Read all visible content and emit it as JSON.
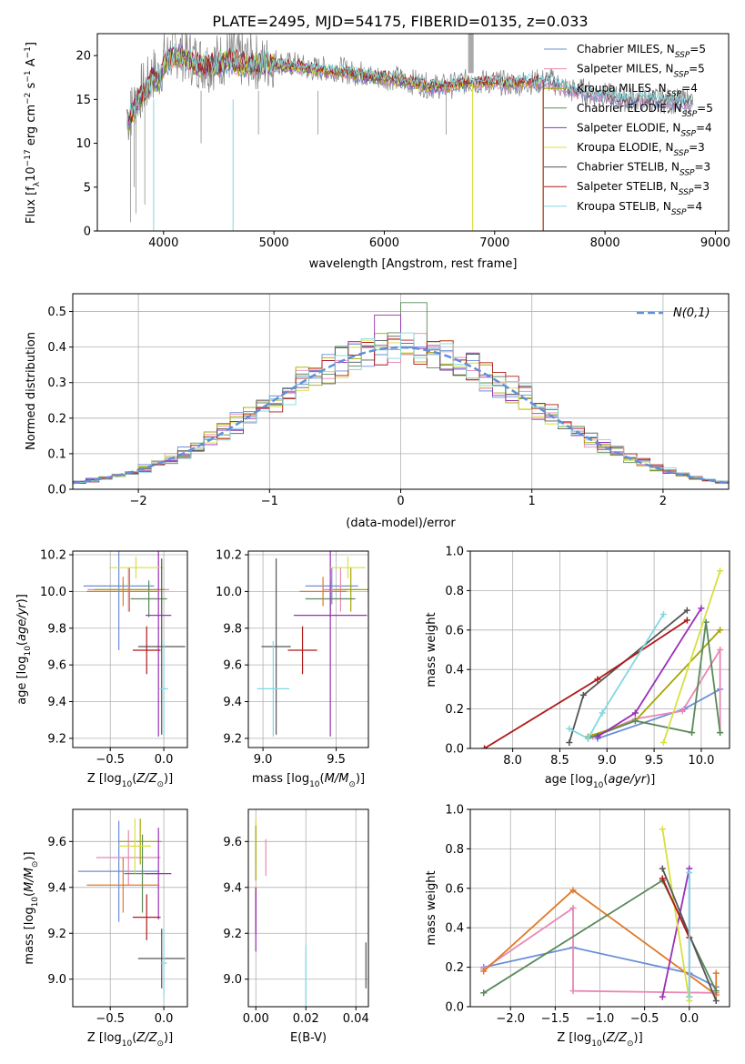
{
  "figure_title": "PLATE=2495, MJD=54175, FIBERID=0135, z=0.033",
  "colors": {
    "Chabrier MILES": "#6b8ed8",
    "Salpeter MILES": "#e888b4",
    "Kroupa MILES": "#a6a600",
    "Chabrier ELODIE": "#5a8a5a",
    "Salpeter ELODIE": "#9a30b8",
    "Kroupa ELODIE": "#d8e040",
    "Chabrier STELIB": "#555555",
    "Salpeter STELIB": "#b01818",
    "Kroupa STELIB": "#80d8e0",
    "orange": "#e07a28",
    "normal_curve": "#6090d8",
    "grid": "#b0b0b0"
  },
  "chart_data": [
    {
      "id": "spectrum",
      "type": "line",
      "xlabel": "wavelength [Angstrom, rest frame]",
      "ylabel": "Flux [f_λ 10^-17 erg cm^-2 s^-1 A^-1]",
      "xlim": [
        3400,
        9120
      ],
      "ylim": [
        0,
        22.5
      ],
      "xticks": [
        4000,
        5000,
        6000,
        7000,
        8000,
        9000
      ],
      "yticks": [
        0,
        5,
        10,
        15,
        20
      ],
      "grid": false,
      "legend": "top-right",
      "legend_entries": [
        {
          "name": "Chabrier MILES",
          "nssp": "5"
        },
        {
          "name": "Salpeter MILES",
          "nssp": "5"
        },
        {
          "name": "Kroupa MILES",
          "nssp": "4"
        },
        {
          "name": "Chabrier ELODIE",
          "nssp": "5"
        },
        {
          "name": "Salpeter ELODIE",
          "nssp": "4"
        },
        {
          "name": "Kroupa ELODIE",
          "nssp": "3"
        },
        {
          "name": "Chabrier STELIB",
          "nssp": "3"
        },
        {
          "name": "Salpeter STELIB",
          "nssp": "3"
        },
        {
          "name": "Kroupa STELIB",
          "nssp": "4"
        }
      ],
      "data_series": {
        "name": "data",
        "color": "#808080",
        "x": [
          3670,
          3700,
          3750,
          3800,
          3850,
          3900,
          3950,
          4000,
          4050,
          4100,
          4150,
          4200,
          4300,
          4400,
          4500,
          4600,
          4700,
          4800,
          4900,
          5000,
          5100,
          5200,
          5300,
          5400,
          5500,
          5600,
          5700,
          5800,
          5900,
          6000,
          6100,
          6200,
          6300,
          6400,
          6500,
          6600,
          6700,
          6800,
          6900,
          7000,
          7100,
          7200,
          7300,
          7400,
          7500,
          7600,
          7700,
          7800,
          7900,
          8000,
          8200,
          8400,
          8600,
          8800
        ],
        "y": [
          12.5,
          13.5,
          15.0,
          16.0,
          16.5,
          18.0,
          17.5,
          19.5,
          20.0,
          20.5,
          20.5,
          20.0,
          19.5,
          19.0,
          19.5,
          20.0,
          19.5,
          19.5,
          19.0,
          19.5,
          19.0,
          19.0,
          18.5,
          18.5,
          18.5,
          18.5,
          18.0,
          18.0,
          17.5,
          17.5,
          17.5,
          17.0,
          17.0,
          16.5,
          16.5,
          16.5,
          17.0,
          17.0,
          17.0,
          17.0,
          16.8,
          16.8,
          17.0,
          17.0,
          17.2,
          16.5,
          16.0,
          16.0,
          15.5,
          15.5,
          15.0,
          15.0,
          14.8,
          14.8
        ]
      },
      "model_curve": {
        "x": [
          3670,
          3700,
          3750,
          3800,
          3850,
          3900,
          3950,
          4000,
          4050,
          4100,
          4150,
          4200,
          4300,
          4400,
          4500,
          4600,
          4700,
          4800,
          4900,
          5000,
          5100,
          5200,
          5300,
          5400,
          5500,
          5600,
          5700,
          5800,
          5900,
          6000,
          6100,
          6200,
          6300,
          6400,
          6500,
          6600,
          6700,
          6800,
          6900,
          7000,
          7100,
          7200,
          7300,
          7400,
          7500,
          7600,
          7700,
          7800,
          7900,
          8000,
          8200,
          8400,
          8600,
          8800
        ],
        "y": [
          12.5,
          13.0,
          14.5,
          15.5,
          16.0,
          17.5,
          17.0,
          19.0,
          19.5,
          20.0,
          20.0,
          19.5,
          19.0,
          19.0,
          19.0,
          19.5,
          19.0,
          19.0,
          19.0,
          19.0,
          18.8,
          18.8,
          18.5,
          18.3,
          18.2,
          18.2,
          18.0,
          17.8,
          17.5,
          17.5,
          17.3,
          17.0,
          16.8,
          16.5,
          16.5,
          16.5,
          16.8,
          17.0,
          17.0,
          17.0,
          16.8,
          16.8,
          17.0,
          17.0,
          17.0,
          16.5,
          16.0,
          15.8,
          15.5,
          15.4,
          15.0,
          14.9,
          14.8,
          14.7
        ]
      },
      "model_ends": {
        "Chabrier MILES": 8840,
        "Salpeter MILES": 8840,
        "Kroupa MILES": 7440,
        "Chabrier ELODIE": 6800,
        "Salpeter ELODIE": 6800,
        "Kroupa ELODIE": 6800,
        "Chabrier STELIB": 8840,
        "Salpeter STELIB": 7440,
        "Kroupa STELIB": 8840
      }
    },
    {
      "id": "residuals",
      "type": "step",
      "xlabel": "(data-model)/error",
      "ylabel": "Normed distribution",
      "xlim": [
        -2.5,
        2.5
      ],
      "ylim": [
        0,
        0.55
      ],
      "xticks": [
        -2,
        -1,
        0,
        1,
        2
      ],
      "yticks": [
        0.0,
        0.1,
        0.2,
        0.3,
        0.4,
        0.5
      ],
      "grid": true,
      "legend": "top-right",
      "legend_label": "N(0,1)",
      "bin_width": 0.1
    },
    {
      "id": "age_vs_Z",
      "type": "errorbar",
      "xlabel": "Z [log10(Z/Z⊙)]",
      "ylabel": "age [log10(age/yr)]",
      "xlim": [
        -0.85,
        0.22
      ],
      "ylim": [
        9.15,
        10.22
      ],
      "xticks": [
        -0.5,
        0.0
      ],
      "yticks": [
        9.2,
        9.4,
        9.6,
        9.8,
        10.0,
        10.2
      ],
      "grid": true,
      "points": [
        {
          "model": "Chabrier MILES",
          "x": -0.42,
          "xerr": 0.33,
          "y": 10.03,
          "yerr": 0.35
        },
        {
          "model": "Salpeter MILES",
          "x": -0.33,
          "xerr": 0.38,
          "y": 10.01,
          "yerr": 0.12
        },
        {
          "model": "Kroupa MILES",
          "x": -0.32,
          "xerr": 0.33,
          "y": 10.01,
          "yerr": 0.12
        },
        {
          "model": "Chabrier ELODIE",
          "x": -0.14,
          "xerr": 0.17,
          "y": 9.96,
          "yerr": 0.1
        },
        {
          "model": "Salpeter ELODIE",
          "x": -0.05,
          "xerr": 0.12,
          "y": 9.87,
          "yerr": 0.66
        },
        {
          "model": "Kroupa ELODIE",
          "x": -0.26,
          "xerr": 0.25,
          "y": 10.13,
          "yerr": 0.06
        },
        {
          "model": "Chabrier STELIB",
          "x": -0.02,
          "xerr": 0.22,
          "y": 9.7,
          "yerr": 0.48
        },
        {
          "model": "Salpeter STELIB",
          "x": -0.16,
          "xerr": 0.13,
          "y": 9.68,
          "yerr": 0.13
        },
        {
          "model": "Kroupa STELIB",
          "x": 0.0,
          "xerr": 0.04,
          "y": 9.47,
          "yerr": 0.26
        },
        {
          "model": "orange",
          "x": -0.38,
          "xerr": 0.34,
          "y": 10.0,
          "yerr": 0.08
        }
      ]
    },
    {
      "id": "age_vs_mass",
      "type": "errorbar",
      "xlabel": "mass [log10(M/M⊙)]",
      "ylabel": "",
      "xlim": [
        8.9,
        9.72
      ],
      "ylim": [
        9.15,
        10.22
      ],
      "xticks": [
        9.0,
        9.5
      ],
      "yticks": [
        9.2,
        9.4,
        9.6,
        9.8,
        10.0,
        10.2
      ],
      "grid": true,
      "points": [
        {
          "model": "Chabrier MILES",
          "x": 9.47,
          "xerr": 0.18,
          "y": 10.03,
          "yerr": 0.1
        },
        {
          "model": "Salpeter MILES",
          "x": 9.53,
          "xerr": 0.12,
          "y": 10.01,
          "yerr": 0.12
        },
        {
          "model": "Kroupa MILES",
          "x": 9.6,
          "xerr": 0.12,
          "y": 10.01,
          "yerr": 0.12
        },
        {
          "model": "Chabrier ELODIE",
          "x": 9.46,
          "xerr": 0.17,
          "y": 9.96,
          "yerr": 0.1
        },
        {
          "model": "Salpeter ELODIE",
          "x": 9.46,
          "xerr": 0.25,
          "y": 9.87,
          "yerr": 0.66
        },
        {
          "model": "Kroupa ELODIE",
          "x": 9.58,
          "xerr": 0.12,
          "y": 10.13,
          "yerr": 0.06
        },
        {
          "model": "Chabrier STELIB",
          "x": 9.09,
          "xerr": 0.1,
          "y": 9.7,
          "yerr": 0.48
        },
        {
          "model": "Salpeter STELIB",
          "x": 9.27,
          "xerr": 0.1,
          "y": 9.68,
          "yerr": 0.13
        },
        {
          "model": "Kroupa STELIB",
          "x": 9.07,
          "xerr": 0.11,
          "y": 9.47,
          "yerr": 0.26
        },
        {
          "model": "orange",
          "x": 9.41,
          "xerr": 0.16,
          "y": 10.0,
          "yerr": 0.08
        }
      ]
    },
    {
      "id": "weight_vs_age",
      "type": "line",
      "xlabel": "age [log10(age/yr)]",
      "ylabel": "mass weight",
      "xlim": [
        7.55,
        10.3
      ],
      "ylim": [
        0,
        1.0
      ],
      "xticks": [
        8.0,
        8.5,
        9.0,
        9.5,
        10.0
      ],
      "yticks": [
        0.0,
        0.2,
        0.4,
        0.6,
        0.8,
        1.0
      ],
      "grid": true,
      "series": [
        {
          "model": "Chabrier MILES",
          "points": [
            [
              8.9,
              0.05
            ],
            [
              9.82,
              0.2
            ],
            [
              10.2,
              0.3
            ]
          ]
        },
        {
          "model": "Salpeter MILES",
          "points": [
            [
              8.85,
              0.06
            ],
            [
              9.3,
              0.15
            ],
            [
              9.8,
              0.19
            ],
            [
              10.2,
              0.5
            ],
            [
              10.2,
              0.08
            ]
          ]
        },
        {
          "model": "Kroupa MILES",
          "points": [
            [
              8.8,
              0.06
            ],
            [
              9.3,
              0.14
            ],
            [
              10.2,
              0.6
            ]
          ]
        },
        {
          "model": "Chabrier ELODIE",
          "points": [
            [
              8.8,
              0.05
            ],
            [
              9.3,
              0.14
            ],
            [
              9.9,
              0.08
            ],
            [
              10.05,
              0.64
            ],
            [
              10.2,
              0.08
            ]
          ]
        },
        {
          "model": "Salpeter ELODIE",
          "points": [
            [
              8.9,
              0.06
            ],
            [
              9.3,
              0.18
            ],
            [
              10.0,
              0.71
            ]
          ]
        },
        {
          "model": "Kroupa ELODIE",
          "points": [
            [
              9.6,
              0.03
            ],
            [
              10.2,
              0.9
            ]
          ]
        },
        {
          "model": "Chabrier STELIB",
          "points": [
            [
              8.6,
              0.03
            ],
            [
              8.75,
              0.27
            ],
            [
              9.85,
              0.7
            ]
          ]
        },
        {
          "model": "Salpeter STELIB",
          "points": [
            [
              7.7,
              0.0
            ],
            [
              8.9,
              0.35
            ],
            [
              9.85,
              0.65
            ]
          ]
        },
        {
          "model": "Kroupa STELIB",
          "points": [
            [
              8.6,
              0.1
            ],
            [
              8.8,
              0.05
            ],
            [
              8.95,
              0.18
            ],
            [
              9.6,
              0.68
            ]
          ]
        }
      ]
    },
    {
      "id": "mass_vs_Z",
      "type": "errorbar",
      "xlabel": "Z [log10(Z/Z⊙)]",
      "ylabel": "mass [log10(M/M⊙)]",
      "xlim": [
        -0.85,
        0.22
      ],
      "ylim": [
        8.88,
        9.74
      ],
      "xticks": [
        -0.5,
        0.0
      ],
      "yticks": [
        9.0,
        9.2,
        9.4,
        9.6
      ],
      "grid": true,
      "points": [
        {
          "model": "Chabrier MILES",
          "x": -0.42,
          "xerr": 0.38,
          "y": 9.47,
          "yerr": 0.22
        },
        {
          "model": "Salpeter MILES",
          "x": -0.33,
          "xerr": 0.3,
          "y": 9.53,
          "yerr": 0.12
        },
        {
          "model": "Kroupa MILES",
          "x": -0.22,
          "xerr": 0.2,
          "y": 9.6,
          "yerr": 0.1
        },
        {
          "model": "Chabrier ELODIE",
          "x": -0.2,
          "xerr": 0.17,
          "y": 9.46,
          "yerr": 0.17
        },
        {
          "model": "Salpeter ELODIE",
          "x": -0.05,
          "xerr": 0.12,
          "y": 9.46,
          "yerr": 0.2
        },
        {
          "model": "Kroupa ELODIE",
          "x": -0.27,
          "xerr": 0.15,
          "y": 9.58,
          "yerr": 0.12
        },
        {
          "model": "Chabrier STELIB",
          "x": -0.02,
          "xerr": 0.22,
          "y": 9.09,
          "yerr": 0.13
        },
        {
          "model": "Salpeter STELIB",
          "x": -0.16,
          "xerr": 0.13,
          "y": 9.27,
          "yerr": 0.1
        },
        {
          "model": "Kroupa STELIB",
          "x": 0.0,
          "xerr": 0.03,
          "y": 9.07,
          "yerr": 0.15
        },
        {
          "model": "orange",
          "x": -0.38,
          "xerr": 0.34,
          "y": 9.41,
          "yerr": 0.12
        }
      ]
    },
    {
      "id": "mass_vs_ebv",
      "type": "errorbar",
      "xlabel": "E(B-V)",
      "ylabel": "",
      "xlim": [
        -0.003,
        0.045
      ],
      "ylim": [
        8.88,
        9.74
      ],
      "xticks": [
        0.0,
        0.02,
        0.04
      ],
      "yticks": [
        9.0,
        9.2,
        9.4,
        9.6
      ],
      "grid": true,
      "points": [
        {
          "model": "Kroupa ELODIE",
          "x": 0.0,
          "xerr": 0.0,
          "y": 9.6,
          "yerr": 0.1
        },
        {
          "model": "Salpeter MILES",
          "x": 0.004,
          "xerr": 0.0,
          "y": 9.53,
          "yerr": 0.08
        },
        {
          "model": "Kroupa MILES",
          "x": 0.0,
          "xerr": 0.0,
          "y": 9.55,
          "yerr": 0.12
        },
        {
          "model": "Salpeter STELIB",
          "x": 0.0,
          "xerr": 0.0,
          "y": 9.3,
          "yerr": 0.1
        },
        {
          "model": "Salpeter ELODIE",
          "x": 0.0,
          "xerr": 0.0,
          "y": 9.25,
          "yerr": 0.13
        },
        {
          "model": "Kroupa STELIB",
          "x": 0.02,
          "xerr": 0.0,
          "y": 9.0,
          "yerr": 0.15
        },
        {
          "model": "Chabrier STELIB",
          "x": 0.044,
          "xerr": 0.0,
          "y": 9.06,
          "yerr": 0.1
        }
      ]
    },
    {
      "id": "weight_vs_Z",
      "type": "line",
      "xlabel": "Z [log10(Z/Z⊙)]",
      "ylabel": "mass weight",
      "xlim": [
        -2.45,
        0.45
      ],
      "ylim": [
        0,
        1.0
      ],
      "xticks": [
        -2.0,
        -1.5,
        -1.0,
        -0.5,
        0.0
      ],
      "yticks": [
        0.0,
        0.2,
        0.4,
        0.6,
        0.8,
        1.0
      ],
      "grid": true,
      "series": [
        {
          "model": "Chabrier MILES",
          "points": [
            [
              -2.3,
              0.2
            ],
            [
              -1.3,
              0.3
            ],
            [
              0.0,
              0.17
            ],
            [
              0.3,
              0.1
            ]
          ]
        },
        {
          "model": "Salpeter MILES",
          "points": [
            [
              -2.3,
              0.19
            ],
            [
              -1.3,
              0.5
            ],
            [
              -1.3,
              0.08
            ],
            [
              0.3,
              0.07
            ]
          ]
        },
        {
          "model": "orange",
          "points": [
            [
              -2.3,
              0.18
            ],
            [
              -1.3,
              0.59
            ],
            [
              0.3,
              0.06
            ],
            [
              0.3,
              0.17
            ]
          ]
        },
        {
          "model": "Chabrier ELODIE",
          "points": [
            [
              -2.3,
              0.07
            ],
            [
              -0.3,
              0.64
            ],
            [
              0.3,
              0.08
            ]
          ]
        },
        {
          "model": "Salpeter ELODIE",
          "points": [
            [
              -0.3,
              0.05
            ],
            [
              0.0,
              0.7
            ],
            [
              0.0,
              0.05
            ]
          ]
        },
        {
          "model": "Kroupa ELODIE",
          "points": [
            [
              -0.3,
              0.9
            ],
            [
              0.0,
              0.03
            ]
          ]
        },
        {
          "model": "Chabrier STELIB",
          "points": [
            [
              -0.3,
              0.7
            ],
            [
              0.3,
              0.03
            ]
          ]
        },
        {
          "model": "Salpeter STELIB",
          "points": [
            [
              -0.3,
              0.65
            ],
            [
              0.0,
              0.35
            ]
          ]
        },
        {
          "model": "Kroupa STELIB",
          "points": [
            [
              0.0,
              0.68
            ],
            [
              0.0,
              0.05
            ]
          ]
        }
      ]
    }
  ]
}
